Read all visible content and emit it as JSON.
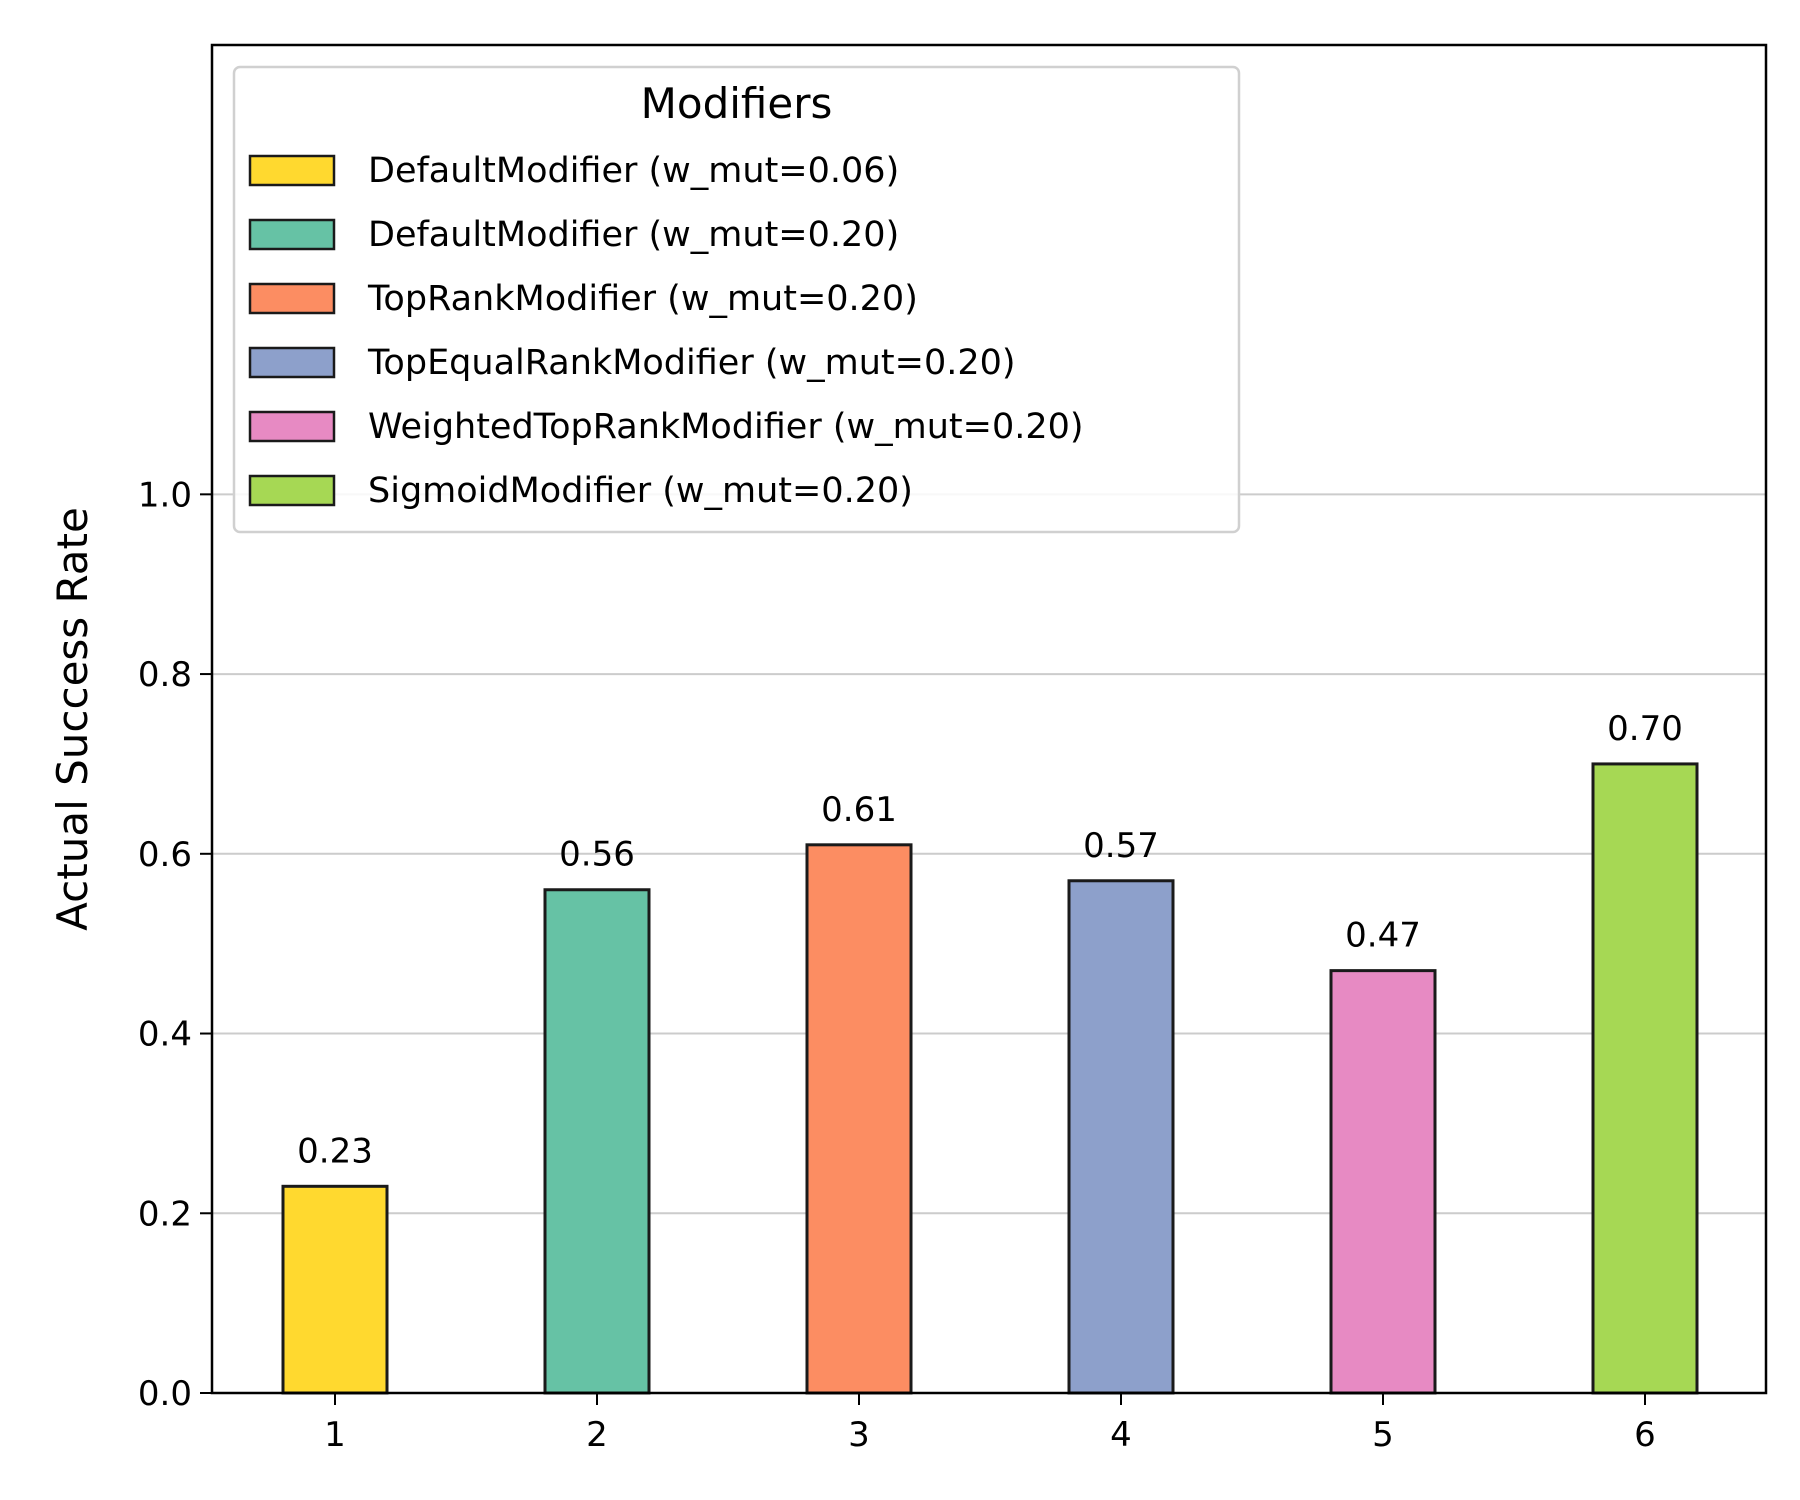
{
  "chart_data": {
    "type": "bar",
    "categories": [
      "1",
      "2",
      "3",
      "4",
      "5",
      "6"
    ],
    "values": [
      0.23,
      0.56,
      0.61,
      0.57,
      0.47,
      0.7
    ],
    "value_labels": [
      "0.23",
      "0.56",
      "0.61",
      "0.57",
      "0.47",
      "0.70"
    ],
    "bar_colors": [
      "#ffd92f",
      "#66c2a5",
      "#fc8d62",
      "#8da0cb",
      "#e78ac3",
      "#a6d854"
    ],
    "xlabel": "",
    "ylabel": "Actual Success Rate",
    "ylim": [
      0.0,
      1.5
    ],
    "yticks": [
      0.0,
      0.2,
      0.4,
      0.6,
      0.8,
      1.0
    ],
    "ytick_labels": [
      "0.0",
      "0.2",
      "0.4",
      "0.6",
      "0.8",
      "1.0"
    ],
    "grid": "y-axis only",
    "legend": {
      "title": "Modifiers",
      "position": "top-left",
      "entries": [
        "DefaultModifier (w_mut=0.06)",
        "DefaultModifier (w_mut=0.20)",
        "TopRankModifier (w_mut=0.20)",
        "TopEqualRankModifier (w_mut=0.20)",
        "WeightedTopRankModifier (w_mut=0.20)",
        "SigmoidModifier (w_mut=0.20)"
      ]
    }
  }
}
